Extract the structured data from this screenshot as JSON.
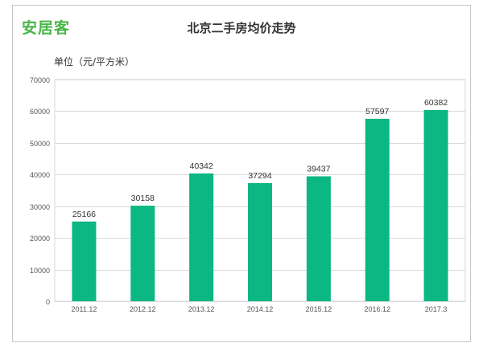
{
  "brand": {
    "logo_text": "安居客"
  },
  "chart_data": {
    "type": "bar",
    "title": "北京二手房均价走势",
    "unit_label": "单位（元/平方米）",
    "categories": [
      "2011.12",
      "2012.12",
      "2013.12",
      "2014.12",
      "2015.12",
      "2016.12",
      "2017.3"
    ],
    "values": [
      25166,
      30158,
      40342,
      37294,
      39437,
      57597,
      60382
    ],
    "data_labels": [
      "25166",
      "30158",
      "40342",
      "37294",
      "39437",
      "57597",
      "60382"
    ],
    "y_ticks": [
      "0",
      "10000",
      "20000",
      "30000",
      "40000",
      "50000",
      "60000",
      "70000"
    ],
    "ylim": [
      0,
      70000
    ],
    "grid": true,
    "legend": "none",
    "colors": {
      "bar": "#0bb783",
      "grid": "#d9d9d9",
      "axis_text": "#555555",
      "label_text": "#333333"
    }
  }
}
